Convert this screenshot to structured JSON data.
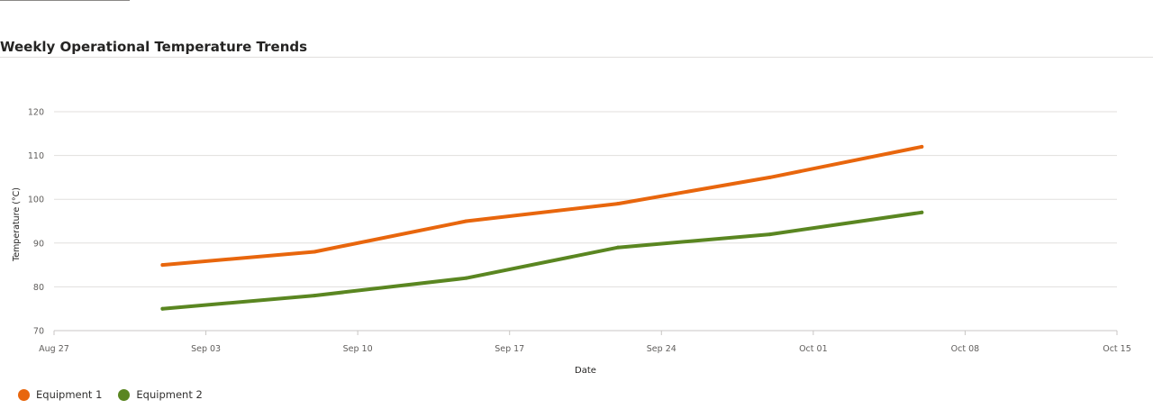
{
  "header": {
    "title": "Weekly Operational Temperature Trends"
  },
  "chart_data": {
    "type": "line",
    "title": "Weekly Operational Temperature Trends",
    "xlabel": "Date",
    "ylabel": "Temperature (°C)",
    "xlim": [
      "2023-08-27",
      "2023-10-15"
    ],
    "ylim": [
      70,
      120
    ],
    "x_ticks": [
      {
        "date": "2023-08-27",
        "label": "Aug 27"
      },
      {
        "date": "2023-09-03",
        "label": "Sep 03"
      },
      {
        "date": "2023-09-10",
        "label": "Sep 10"
      },
      {
        "date": "2023-09-17",
        "label": "Sep 17"
      },
      {
        "date": "2023-09-24",
        "label": "Sep 24"
      },
      {
        "date": "2023-10-01",
        "label": "Oct 01"
      },
      {
        "date": "2023-10-08",
        "label": "Oct 08"
      },
      {
        "date": "2023-10-15",
        "label": "Oct 15"
      }
    ],
    "y_ticks": [
      70,
      80,
      90,
      100,
      110,
      120
    ],
    "grid": true,
    "legend": "bottom-left",
    "x": [
      "2023-09-01",
      "2023-09-08",
      "2023-09-15",
      "2023-09-22",
      "2023-09-29",
      "2023-10-06"
    ],
    "series": [
      {
        "name": "Equipment 1",
        "color": "#E8660D",
        "values": [
          85,
          88,
          95,
          99,
          105,
          112
        ]
      },
      {
        "name": "Equipment 2",
        "color": "#5A8621",
        "values": [
          75,
          78,
          82,
          89,
          92,
          97
        ]
      }
    ]
  }
}
